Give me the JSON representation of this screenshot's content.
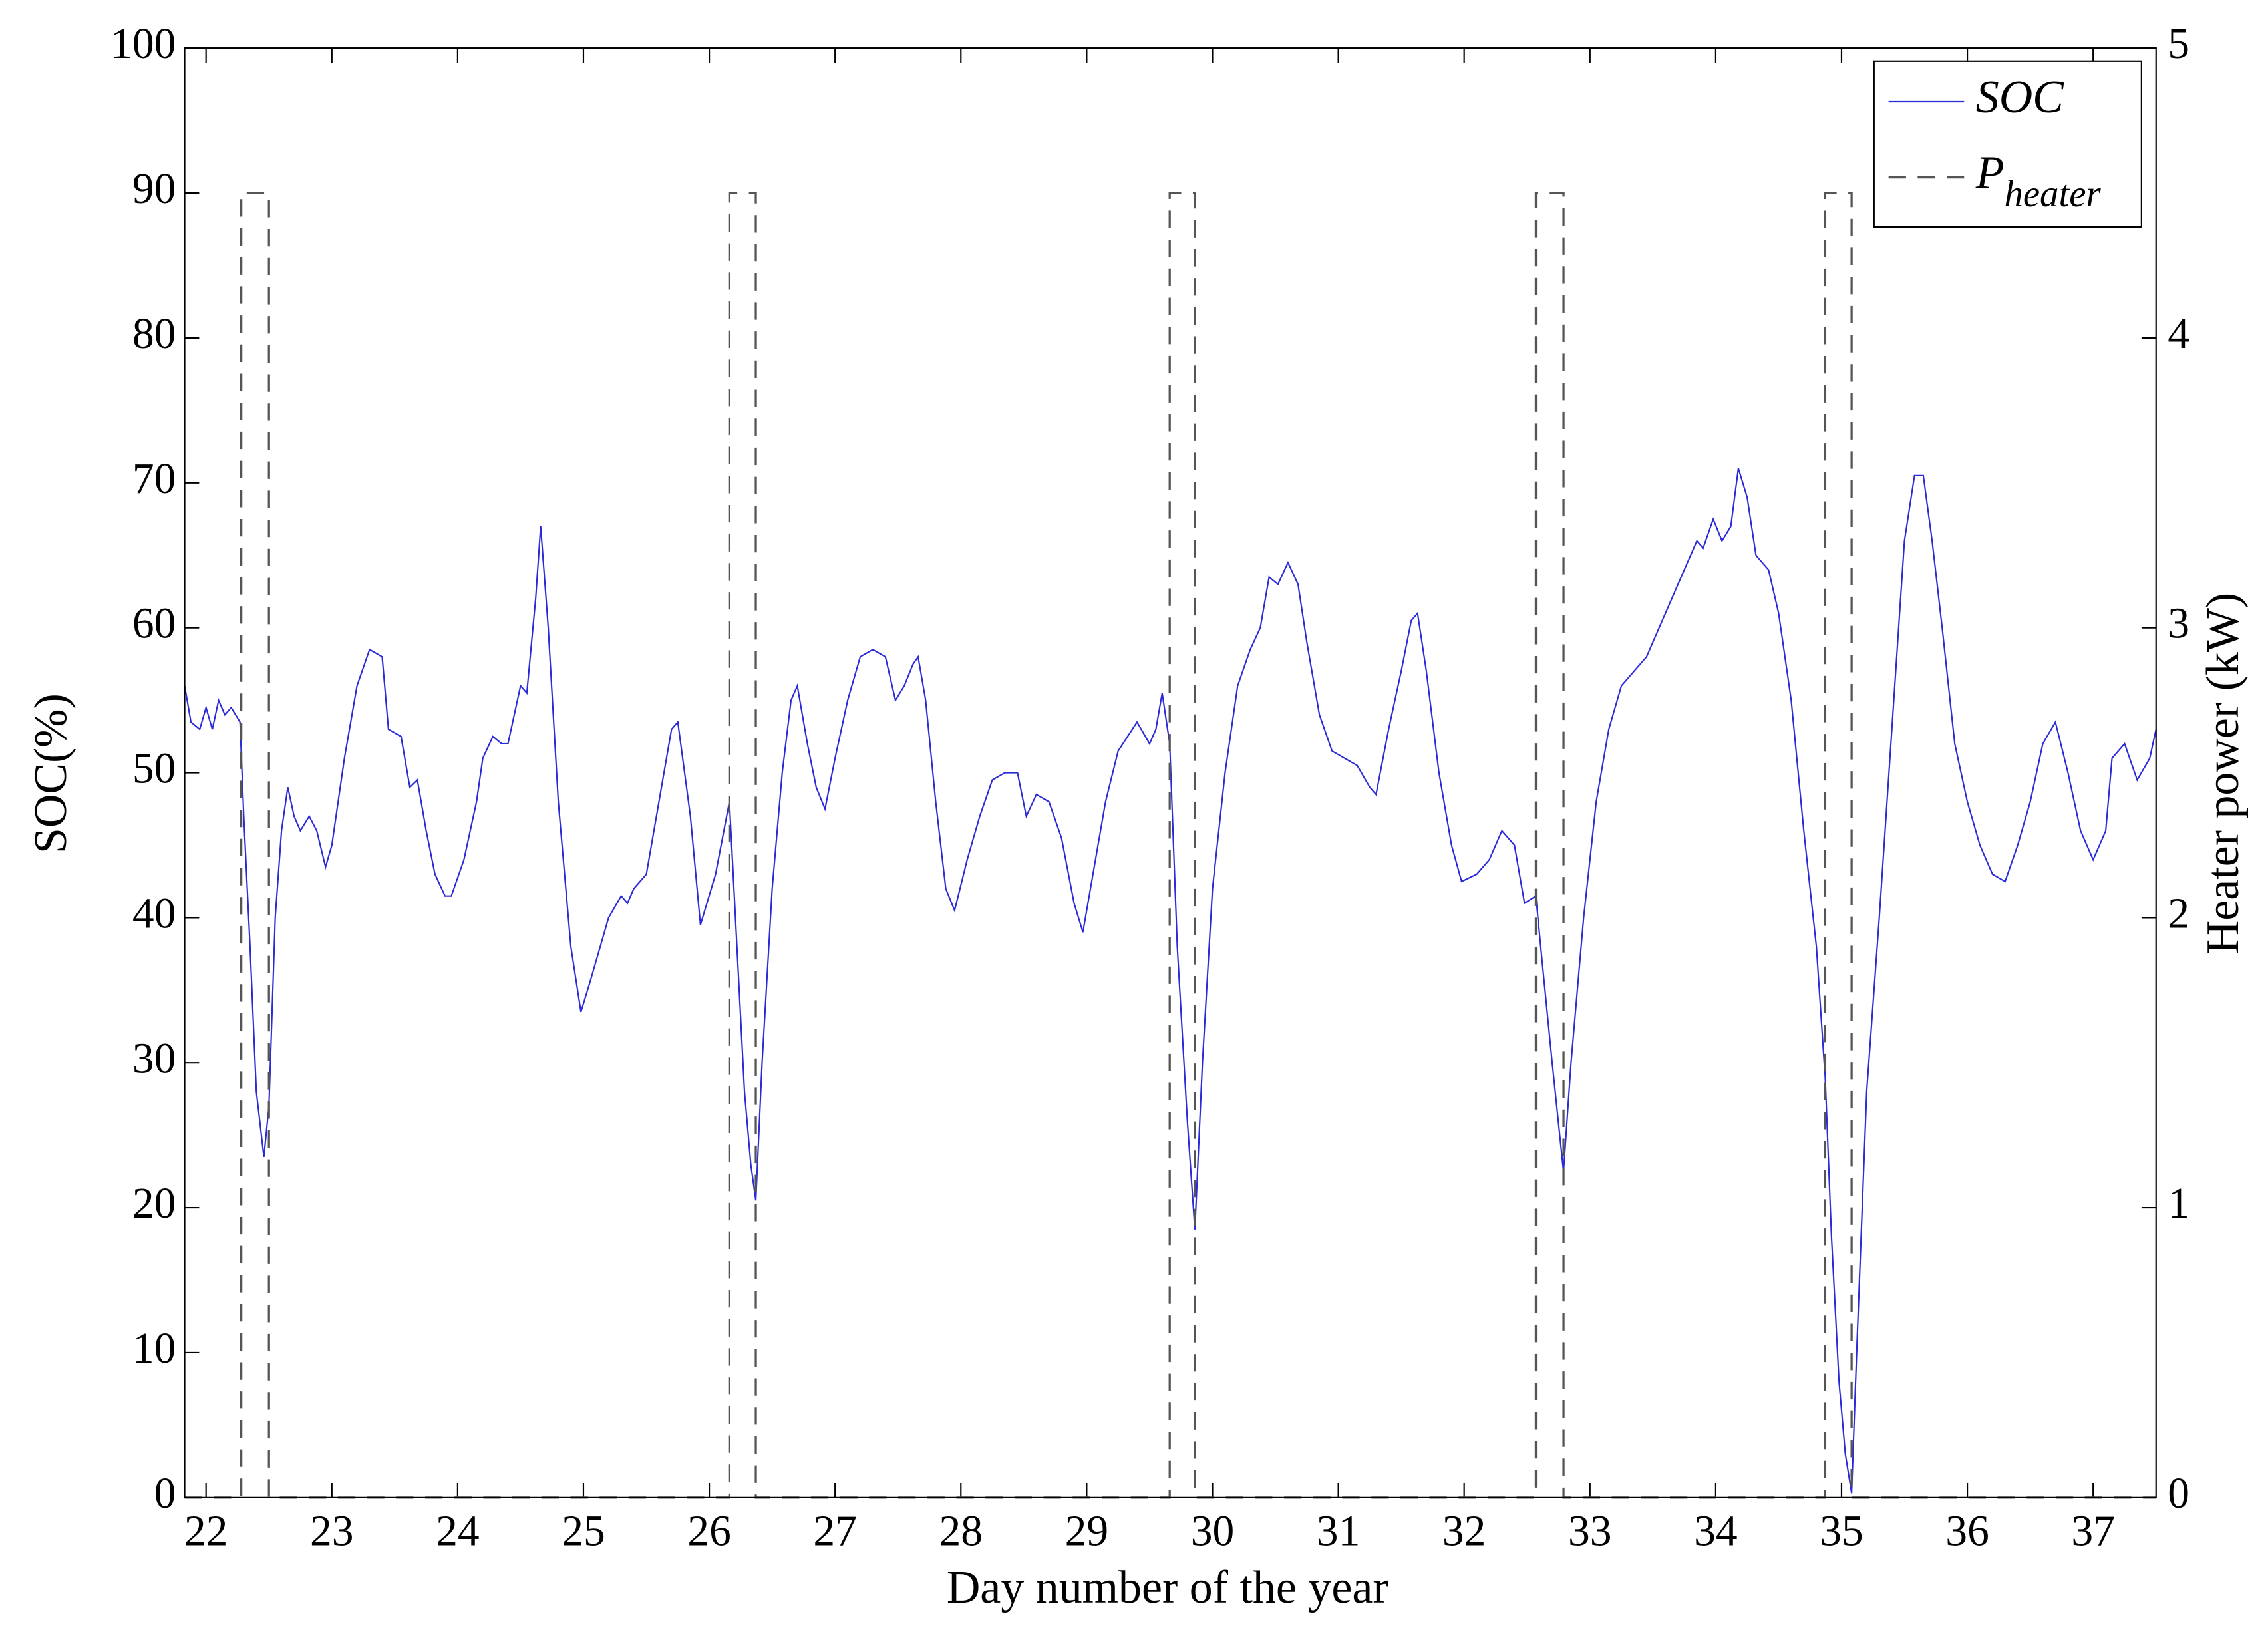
{
  "chart_data": {
    "type": "line",
    "xlabel": "Day number of the year",
    "ylabel": "SOC(%)",
    "y2label": "Heater power (kW)",
    "xlim": [
      21.83,
      37.5
    ],
    "xticks": [
      22,
      23,
      24,
      25,
      26,
      27,
      28,
      29,
      30,
      31,
      32,
      33,
      34,
      35,
      36,
      37
    ],
    "ylim": [
      0,
      100
    ],
    "yticks": [
      0,
      10,
      20,
      30,
      40,
      50,
      60,
      70,
      80,
      90,
      100
    ],
    "y2lim": [
      0,
      5
    ],
    "y2ticks": [
      0,
      1,
      2,
      3,
      4,
      5
    ],
    "grid": false,
    "legend": "upper right",
    "series": [
      {
        "name": "SOC",
        "color": "#2b2bd9",
        "style": "solid",
        "x": [
          21.83,
          21.88,
          21.95,
          22.0,
          22.05,
          22.1,
          22.15,
          22.2,
          22.27,
          22.3,
          22.35,
          22.4,
          22.46,
          22.5,
          22.55,
          22.6,
          22.65,
          22.7,
          22.75,
          22.82,
          22.88,
          22.95,
          23.0,
          23.1,
          23.2,
          23.3,
          23.4,
          23.45,
          23.55,
          23.62,
          23.68,
          23.75,
          23.82,
          23.9,
          23.95,
          24.05,
          24.15,
          24.2,
          24.28,
          24.35,
          24.4,
          24.5,
          24.55,
          24.62,
          24.66,
          24.72,
          24.8,
          24.9,
          24.98,
          25.05,
          25.2,
          25.3,
          25.35,
          25.4,
          25.5,
          25.6,
          25.7,
          25.75,
          25.85,
          25.93,
          26.05,
          26.16,
          26.22,
          26.28,
          26.33,
          26.37,
          26.42,
          26.5,
          26.58,
          26.65,
          26.7,
          26.78,
          26.85,
          26.92,
          27.0,
          27.1,
          27.2,
          27.3,
          27.4,
          27.48,
          27.55,
          27.62,
          27.66,
          27.72,
          27.8,
          27.88,
          27.95,
          28.05,
          28.15,
          28.25,
          28.35,
          28.45,
          28.52,
          28.6,
          28.7,
          28.8,
          28.9,
          28.97,
          29.05,
          29.15,
          29.25,
          29.4,
          29.5,
          29.55,
          29.6,
          29.66,
          29.72,
          29.8,
          29.86,
          29.92,
          30.0,
          30.1,
          30.2,
          30.3,
          30.38,
          30.45,
          30.52,
          30.6,
          30.68,
          30.75,
          30.85,
          30.95,
          31.05,
          31.15,
          31.25,
          31.3,
          31.4,
          31.5,
          31.58,
          31.63,
          31.7,
          31.8,
          31.9,
          31.98,
          32.1,
          32.2,
          32.3,
          32.4,
          32.48,
          32.57,
          32.62,
          32.7,
          32.79,
          32.85,
          32.95,
          33.05,
          33.15,
          33.25,
          33.35,
          33.45,
          33.55,
          33.65,
          33.75,
          33.85,
          33.9,
          33.98,
          34.05,
          34.12,
          34.18,
          34.25,
          34.32,
          34.42,
          34.5,
          34.6,
          34.7,
          34.8,
          34.87,
          34.92,
          34.98,
          35.03,
          35.08,
          35.12,
          35.2,
          35.3,
          35.4,
          35.5,
          35.58,
          35.65,
          35.72,
          35.8,
          35.9,
          36.0,
          36.1,
          36.2,
          36.3,
          36.4,
          36.5,
          36.6,
          36.7,
          36.8,
          36.9,
          37.0,
          37.1,
          37.15,
          37.25,
          37.35,
          37.45,
          37.5
        ],
        "values": [
          56,
          53.5,
          53,
          54.5,
          53,
          55,
          54,
          54.5,
          53.5,
          47,
          38,
          28,
          23.5,
          27,
          40,
          46,
          49,
          47,
          46,
          47,
          46,
          43.5,
          45,
          51,
          56,
          58.5,
          58,
          53,
          52.5,
          49,
          49.5,
          46,
          43,
          41.5,
          41.5,
          44,
          48,
          51,
          52.5,
          52,
          52,
          56,
          55.5,
          62,
          67,
          60,
          48,
          38,
          33.5,
          35.5,
          40,
          41.5,
          41,
          42,
          43,
          48,
          53,
          53.5,
          47,
          39.5,
          43,
          48,
          38,
          28,
          23,
          20.5,
          30,
          42,
          50,
          55,
          56,
          52,
          49,
          47.5,
          51,
          55,
          58,
          58.5,
          58,
          55,
          56,
          57.5,
          58,
          55,
          48,
          42,
          40.5,
          44,
          47,
          49.5,
          50,
          50,
          47,
          48.5,
          48,
          45.5,
          41,
          39,
          43,
          48,
          51.5,
          53.5,
          52,
          53,
          55.5,
          52,
          38,
          26,
          18.5,
          30,
          42,
          50,
          56,
          58.5,
          60,
          63.5,
          63,
          64.5,
          63,
          59,
          54,
          51.5,
          51,
          50.5,
          49,
          48.5,
          53,
          57,
          60.5,
          61,
          57,
          50,
          45,
          42.5,
          43,
          44,
          46,
          45,
          41,
          41.5,
          37,
          30,
          22.5,
          30,
          40,
          48,
          53,
          56,
          57,
          58,
          60,
          62,
          64,
          66,
          65.5,
          67.5,
          66,
          67,
          71,
          69,
          65,
          64,
          61,
          55,
          46,
          38,
          29,
          18,
          8,
          3,
          0.3,
          10,
          28,
          40,
          53,
          66,
          70.5,
          70.5,
          66,
          60,
          52,
          48,
          45,
          43,
          42.5,
          45,
          48,
          52,
          53.5,
          50,
          46,
          44,
          46,
          51,
          52,
          49.5,
          51,
          53
        ]
      },
      {
        "name": "P",
        "name_sub": "heater",
        "color": "#555555",
        "style": "dashed",
        "axis": "y2",
        "x": [
          21.83,
          22.28,
          22.28,
          22.5,
          22.5,
          26.16,
          26.16,
          26.37,
          26.37,
          29.66,
          29.66,
          29.86,
          29.86,
          32.57,
          32.57,
          32.79,
          32.79,
          34.87,
          34.87,
          35.08,
          35.08,
          37.5
        ],
        "values": [
          0,
          0,
          4.5,
          4.5,
          0,
          0,
          4.5,
          4.5,
          0,
          0,
          4.5,
          4.5,
          0,
          0,
          4.5,
          4.5,
          0,
          0,
          4.5,
          4.5,
          0,
          0
        ]
      }
    ]
  }
}
